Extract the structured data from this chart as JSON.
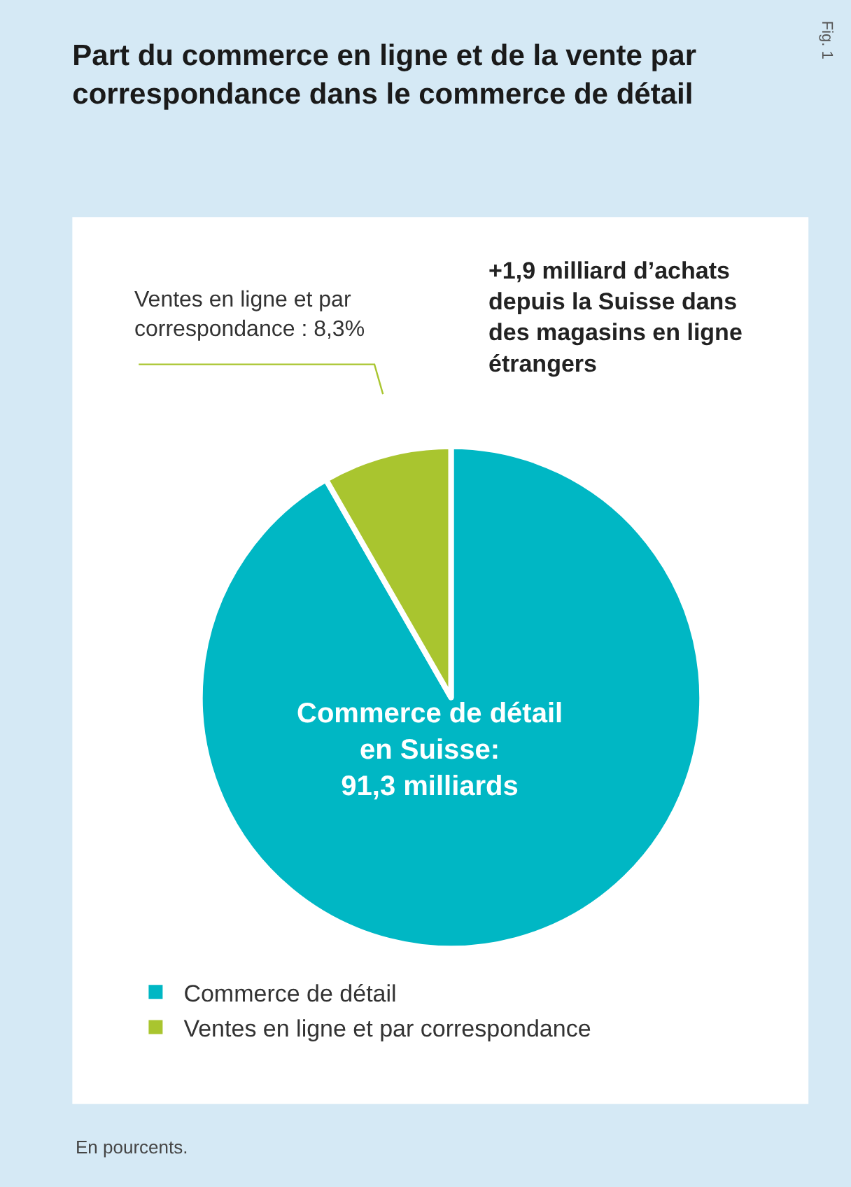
{
  "chart_data": {
    "type": "pie",
    "title": "Part du commerce en ligne et de la vente par\ncorrespondance dans le commerce de détail",
    "categories": [
      "Commerce de détail",
      "Ventes en ligne et par correspondance"
    ],
    "values": [
      91.7,
      8.3
    ],
    "colors": [
      "#00b7c4",
      "#a9c52f"
    ],
    "legend": "bottom left",
    "annotations": [
      "Ventes en ligne et par\ncorrespondance : 8,3%",
      "+1,9 milliard d’achats\ndepuis la Suisse dans\ndes magasins en ligne\nétrangers",
      "Commerce de détail\nen Suisse:\n91,3 milliards",
      "En pourcents.",
      "Fig. 1"
    ]
  }
}
